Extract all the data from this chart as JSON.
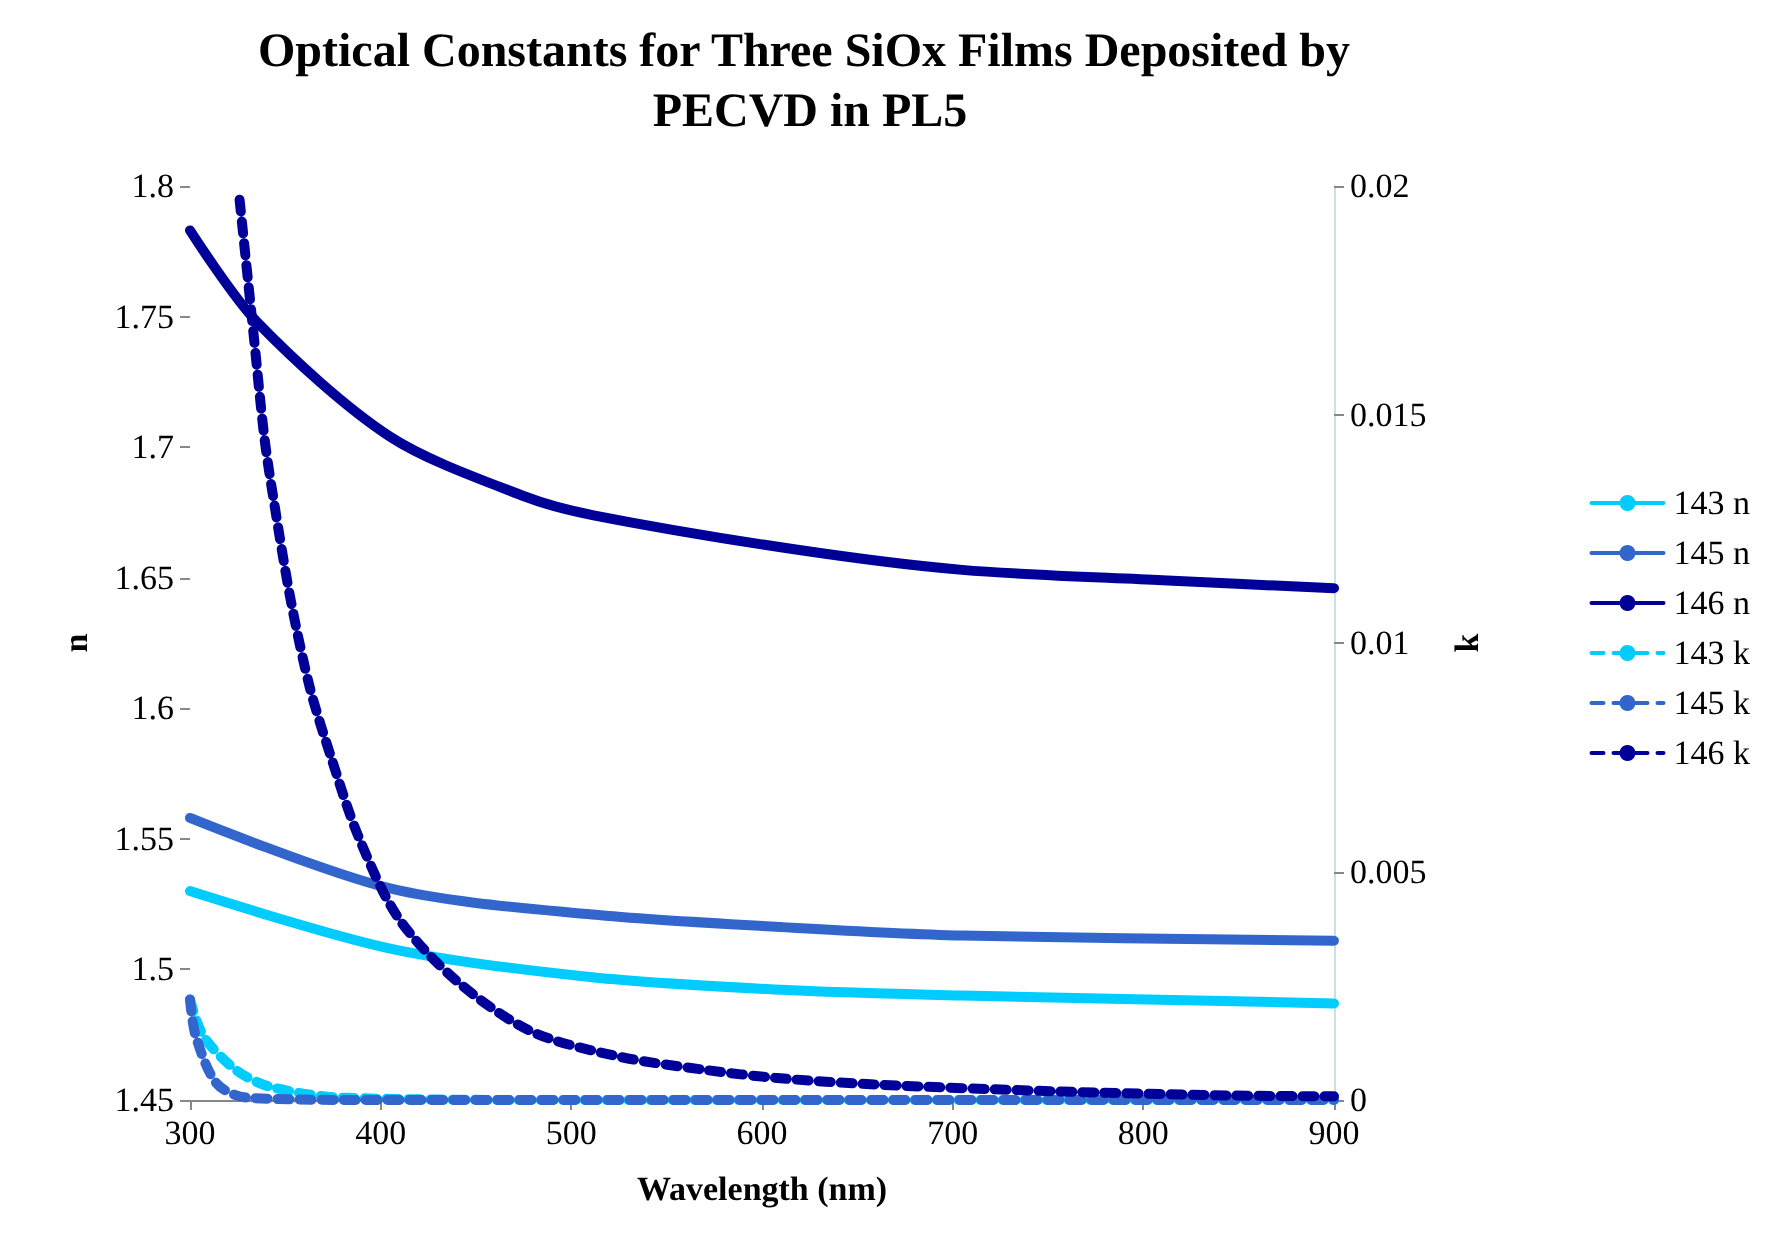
{
  "chart_data": {
    "type": "line",
    "title": "Optical Constants for Three SiOx Films Deposited by PECVD in PL5",
    "xlabel": "Wavelength (nm)",
    "ylabel": "n",
    "y2label": "k",
    "xlim": [
      300,
      900
    ],
    "xticks": [
      300,
      400,
      500,
      600,
      700,
      800,
      900
    ],
    "ylim": [
      1.45,
      1.8
    ],
    "yticks": [
      1.45,
      1.5,
      1.55,
      1.6,
      1.65,
      1.7,
      1.75,
      1.8
    ],
    "y2lim": [
      0,
      0.02
    ],
    "y2ticks": [
      0,
      0.005,
      0.01,
      0.015,
      0.02
    ],
    "grid": false,
    "legend": "right",
    "marker": "none",
    "series": [
      {
        "name": "143 n",
        "color": "#00ccff",
        "line_style": "solid",
        "x": [
          300,
          405,
          511,
          616,
          705,
          900
        ],
        "values": [
          1.53,
          1.508,
          1.497,
          1.492,
          1.49,
          1.487
        ]
      },
      {
        "name": "145 n",
        "color": "#3366cc",
        "line_style": "solid",
        "x": [
          300,
          405,
          511,
          616,
          705,
          900
        ],
        "values": [
          1.558,
          1.531,
          1.521,
          1.516,
          1.513,
          1.511
        ]
      },
      {
        "name": "146 n",
        "color": "#000099",
        "line_style": "solid",
        "x": [
          300,
          335,
          405,
          476,
          511,
          616,
          705,
          810,
          900
        ],
        "values": [
          1.783,
          1.748,
          1.704,
          1.681,
          1.674,
          1.661,
          1.653,
          1.649,
          1.646
        ]
      },
      {
        "name": "143 k",
        "color": "#00ccff",
        "line_style": "dashed",
        "axis": "y2",
        "x": [
          300,
          307,
          324,
          342,
          380,
          500,
          700,
          900
        ],
        "values": [
          0.0022,
          0.0014,
          0.00066,
          0.00029,
          5e-05,
          0,
          0,
          0
        ]
      },
      {
        "name": "145 k",
        "color": "#3366cc",
        "line_style": "dashed",
        "axis": "y2",
        "x": [
          300,
          303,
          314,
          330,
          400,
          600,
          900
        ],
        "values": [
          0.0022,
          0.0014,
          0.00036,
          5e-05,
          0,
          0,
          0
        ]
      },
      {
        "name": "146 k",
        "color": "#000099",
        "line_style": "dashed",
        "axis": "y2",
        "x": [
          326,
          333,
          339,
          344,
          353,
          363,
          374,
          388,
          409,
          440,
          479,
          525,
          570,
          608,
          659,
          753,
          845,
          900
        ],
        "values": [
          0.0197,
          0.0169,
          0.0145,
          0.0131,
          0.0109,
          0.009,
          0.0075,
          0.0058,
          0.004,
          0.0026,
          0.0015,
          0.00095,
          0.00066,
          0.00048,
          0.00034,
          0.00019,
          0.0001,
          8e-05
        ]
      }
    ]
  }
}
